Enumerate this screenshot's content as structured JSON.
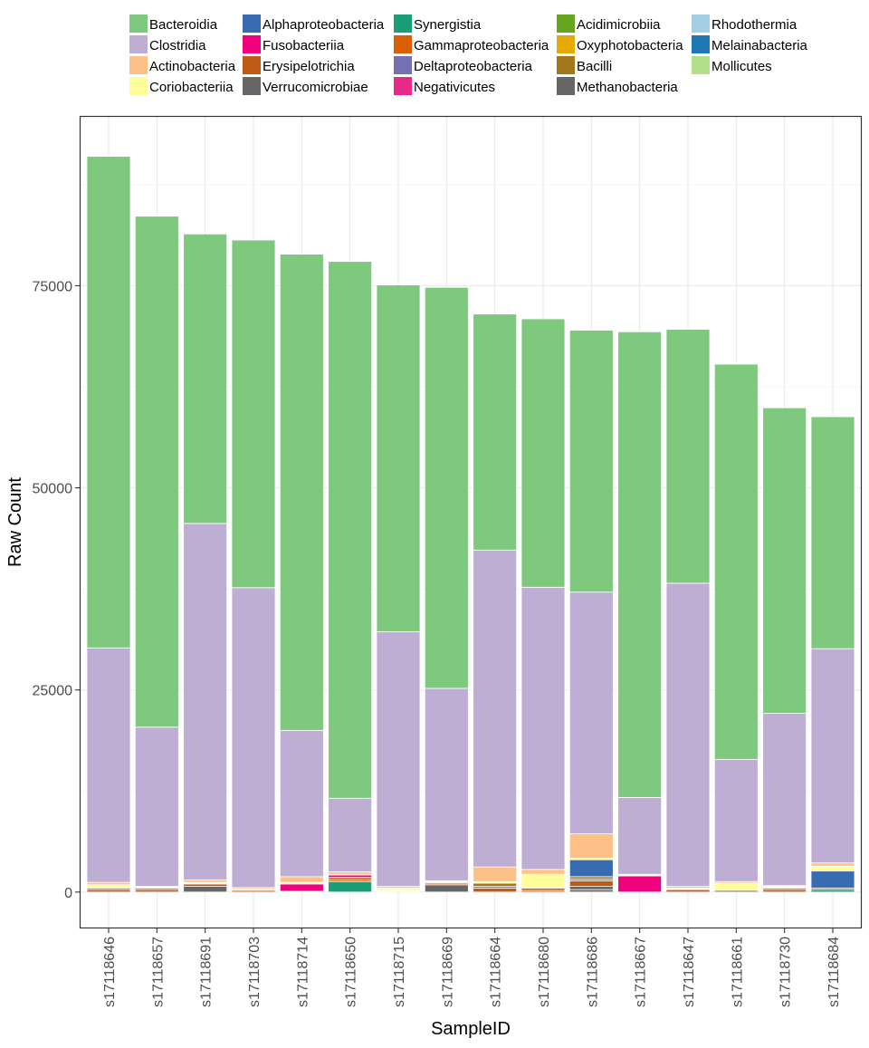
{
  "chart_data": {
    "type": "bar",
    "stacked": true,
    "title": "",
    "xlabel": "SampleID",
    "ylabel": "Raw Count",
    "ylim": [
      -4500,
      96000
    ],
    "yticks": [
      0,
      25000,
      50000,
      75000
    ],
    "ytick_labels": [
      "0",
      "25000",
      "50000",
      "75000"
    ],
    "grid": true,
    "legend_position": "top",
    "categories": [
      "s17118646",
      "s17118657",
      "s17118691",
      "s17118703",
      "s17118714",
      "s17118650",
      "s17118715",
      "s17118669",
      "s17118664",
      "s17118680",
      "s17118686",
      "s17118667",
      "s17118647",
      "s17118661",
      "s17118730",
      "s17118684"
    ],
    "stack_order_bottom_to_top": [
      "Methanobacteria",
      "Verrucomicrobiae",
      "Synergistia",
      "Erysipelotrichia",
      "Gammaproteobacteria",
      "Bacilli",
      "Fusobacteriia",
      "Alphaproteobacteria",
      "Coriobacteriia",
      "Actinobacteria",
      "Clostridia",
      "Bacteroidia"
    ],
    "series": [
      {
        "name": "Bacteroidia",
        "color": "#7fc97f",
        "values": [
          60800,
          63200,
          35800,
          43000,
          58900,
          66400,
          42900,
          49600,
          29200,
          33200,
          32400,
          57600,
          31400,
          48900,
          37800,
          28700
        ]
      },
      {
        "name": "Clostridia",
        "color": "#beaed4",
        "values": [
          29000,
          19700,
          44100,
          37100,
          18100,
          9100,
          31500,
          23800,
          39200,
          34900,
          29900,
          9500,
          37500,
          15100,
          21300,
          26500
        ]
      },
      {
        "name": "Actinobacteria",
        "color": "#fdc086",
        "values": [
          300,
          100,
          300,
          200,
          700,
          300,
          200,
          100,
          1800,
          600,
          3000,
          100,
          200,
          200,
          100,
          400
        ]
      },
      {
        "name": "Coriobacteriia",
        "color": "#ffff99",
        "values": [
          400,
          100,
          100,
          50,
          200,
          100,
          300,
          100,
          200,
          1700,
          200,
          100,
          100,
          900,
          100,
          600
        ]
      },
      {
        "name": "Alphaproteobacteria",
        "color": "#386cb0",
        "values": [
          0,
          0,
          0,
          0,
          0,
          0,
          0,
          0,
          0,
          0,
          2100,
          0,
          0,
          0,
          0,
          2100
        ]
      },
      {
        "name": "Fusobacteriia",
        "color": "#f0027f",
        "values": [
          0,
          0,
          0,
          0,
          900,
          300,
          0,
          0,
          0,
          0,
          0,
          2000,
          100,
          0,
          0,
          0
        ]
      },
      {
        "name": "Bacilli",
        "color": "#a6761d",
        "values": [
          0,
          0,
          0,
          0,
          0,
          0,
          0,
          100,
          400,
          0,
          300,
          0,
          0,
          0,
          100,
          0
        ]
      },
      {
        "name": "Gammaproteobacteria",
        "color": "#d95f02",
        "values": [
          200,
          200,
          100,
          100,
          0,
          300,
          100,
          0,
          200,
          300,
          200,
          0,
          0,
          0,
          200,
          0
        ]
      },
      {
        "name": "Erysipelotrichia",
        "color": "#bf5b17",
        "values": [
          300,
          300,
          300,
          200,
          100,
          200,
          100,
          200,
          500,
          200,
          700,
          0,
          300,
          0,
          300,
          200
        ]
      },
      {
        "name": "Synergistia",
        "color": "#1b9e77",
        "values": [
          0,
          0,
          0,
          0,
          0,
          1300,
          0,
          0,
          0,
          0,
          0,
          0,
          0,
          0,
          0,
          300
        ]
      },
      {
        "name": "Verrucomicrobiae",
        "color": "#666666",
        "values": [
          0,
          0,
          700,
          0,
          0,
          0,
          0,
          900,
          0,
          0,
          400,
          0,
          0,
          0,
          0,
          0
        ]
      },
      {
        "name": "Methanobacteria",
        "color": "#666666",
        "values": [
          0,
          0,
          0,
          0,
          0,
          0,
          0,
          0,
          0,
          0,
          300,
          0,
          0,
          200,
          0,
          0
        ]
      }
    ],
    "legend": [
      [
        {
          "label": "Bacteroidia",
          "color": "#7fc97f"
        },
        {
          "label": "Clostridia",
          "color": "#beaed4"
        },
        {
          "label": "Actinobacteria",
          "color": "#fdc086"
        },
        {
          "label": "Coriobacteriia",
          "color": "#ffff99"
        }
      ],
      [
        {
          "label": "Alphaproteobacteria",
          "color": "#386cb0"
        },
        {
          "label": "Fusobacteriia",
          "color": "#f0027f"
        },
        {
          "label": "Erysipelotrichia",
          "color": "#bf5b17"
        },
        {
          "label": "Verrucomicrobiae",
          "color": "#666666"
        }
      ],
      [
        {
          "label": "Synergistia",
          "color": "#1b9e77"
        },
        {
          "label": "Gammaproteobacteria",
          "color": "#d95f02"
        },
        {
          "label": "Deltaproteobacteria",
          "color": "#7570b3"
        },
        {
          "label": "Negativicutes",
          "color": "#e7298a"
        }
      ],
      [
        {
          "label": "Acidimicrobiia",
          "color": "#66a61e"
        },
        {
          "label": "Oxyphotobacteria",
          "color": "#e6ab02"
        },
        {
          "label": "Bacilli",
          "color": "#a6761d"
        },
        {
          "label": "Methanobacteria",
          "color": "#666666"
        }
      ],
      [
        {
          "label": "Rhodothermia",
          "color": "#a6cee3"
        },
        {
          "label": "Melainabacteria",
          "color": "#1f78b4"
        },
        {
          "label": "Mollicutes",
          "color": "#b2df8a"
        }
      ]
    ]
  }
}
